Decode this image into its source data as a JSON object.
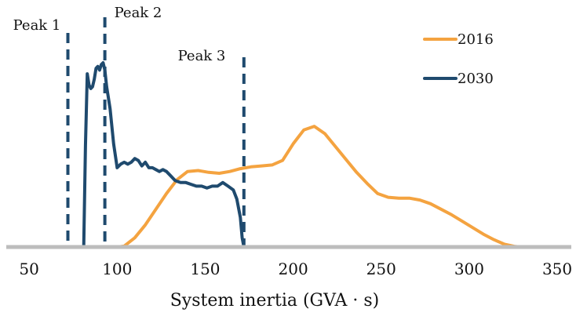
{
  "chart_data": {
    "type": "line",
    "title": "",
    "xlabel": "System inertia (GVA · s)",
    "ylabel": "",
    "xlim": [
      37,
      358
    ],
    "ylim": [
      0,
      1.0
    ],
    "xticks": [
      50,
      100,
      150,
      200,
      250,
      300,
      350
    ],
    "yaxis_visible": false,
    "grid": false,
    "legend_position": "top-right",
    "colors": {
      "2016": "#f4a340",
      "2030": "#1f4a6e",
      "axis": "#bdbdbd",
      "peak": "#1f4a6e"
    },
    "series": [
      {
        "name": "2016",
        "x": [
          100,
          104,
          110,
          116,
          122,
          128,
          134,
          140,
          146,
          152,
          158,
          164,
          170,
          176,
          182,
          188,
          194,
          200,
          206,
          212,
          218,
          224,
          230,
          236,
          242,
          248,
          254,
          260,
          266,
          272,
          278,
          284,
          290,
          296,
          302,
          308,
          314,
          320,
          326,
          330
        ],
        "y": [
          0.0,
          0.005,
          0.05,
          0.12,
          0.205,
          0.29,
          0.365,
          0.41,
          0.415,
          0.405,
          0.4,
          0.41,
          0.425,
          0.435,
          0.44,
          0.445,
          0.47,
          0.56,
          0.635,
          0.655,
          0.615,
          0.545,
          0.475,
          0.405,
          0.345,
          0.29,
          0.27,
          0.265,
          0.265,
          0.255,
          0.235,
          0.205,
          0.175,
          0.14,
          0.105,
          0.07,
          0.04,
          0.015,
          0.003,
          0.0
        ]
      },
      {
        "name": "2030",
        "x": [
          81,
          82,
          83,
          84,
          85,
          86,
          87,
          88,
          89,
          90,
          91,
          92,
          93,
          94,
          95,
          96,
          98,
          100,
          102,
          104,
          106,
          108,
          110,
          112,
          114,
          116,
          118,
          120,
          122,
          124,
          126,
          128,
          130,
          133,
          136,
          139,
          142,
          145,
          148,
          151,
          154,
          157,
          160,
          163,
          166,
          168,
          170,
          171,
          172
        ],
        "y": [
          0.0,
          0.55,
          0.94,
          0.88,
          0.86,
          0.87,
          0.91,
          0.97,
          0.98,
          0.96,
          0.99,
          1.0,
          0.96,
          0.87,
          0.81,
          0.75,
          0.56,
          0.43,
          0.45,
          0.46,
          0.45,
          0.46,
          0.48,
          0.47,
          0.44,
          0.46,
          0.43,
          0.43,
          0.42,
          0.41,
          0.42,
          0.41,
          0.39,
          0.36,
          0.35,
          0.35,
          0.34,
          0.33,
          0.33,
          0.32,
          0.33,
          0.33,
          0.35,
          0.33,
          0.31,
          0.26,
          0.16,
          0.05,
          0.0
        ]
      }
    ],
    "annotations": [
      {
        "type": "vline",
        "x": 72,
        "label": "Peak 1"
      },
      {
        "type": "vline",
        "x": 93,
        "label": "Peak 2"
      },
      {
        "type": "vline",
        "x": 172,
        "label": "Peak 3"
      }
    ]
  }
}
